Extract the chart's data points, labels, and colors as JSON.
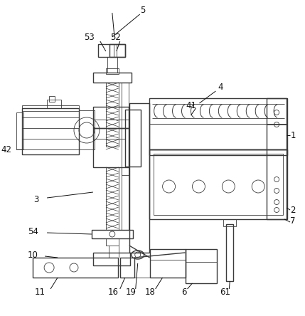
{
  "bg_color": "#ffffff",
  "line_color": "#3a3a3a",
  "label_color": "#111111",
  "lw": 1.0,
  "tlw": 0.6,
  "fig_width": 4.29,
  "fig_height": 4.44,
  "dpi": 100
}
